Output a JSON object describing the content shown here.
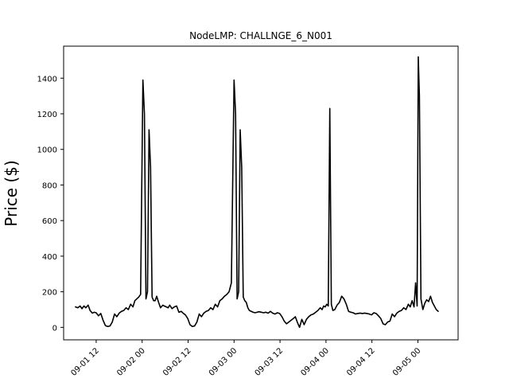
{
  "chart_data": {
    "type": "line",
    "title": "NodeLMP: CHALLNGE_6_N001",
    "xlabel": "",
    "ylabel": "Price ($)",
    "xlim_hours": [
      -20.5,
      82.5
    ],
    "ylim": [
      -70,
      1580
    ],
    "y_ticks": [
      0,
      200,
      400,
      600,
      800,
      1000,
      1200,
      1400
    ],
    "x_ticks": [
      {
        "hour": -12,
        "label": "09-01 12"
      },
      {
        "hour": 0,
        "label": "09-02 00"
      },
      {
        "hour": 12,
        "label": "09-02 12"
      },
      {
        "hour": 24,
        "label": "09-03 00"
      },
      {
        "hour": 36,
        "label": "09-03 12"
      },
      {
        "hour": 48,
        "label": "09-04 00"
      },
      {
        "hour": 60,
        "label": "09-04 12"
      },
      {
        "hour": 72,
        "label": "09-05 00"
      }
    ],
    "grid": false,
    "line_color": "#000000",
    "series": [
      {
        "name": "",
        "x_hours": [
          -17.4,
          -16.8,
          -16.2,
          -15.7,
          -15.2,
          -14.7,
          -14.1,
          -13.6,
          -13.0,
          -12.5,
          -12.0,
          -11.4,
          -10.8,
          -10.2,
          -9.6,
          -9.0,
          -8.4,
          -7.8,
          -7.2,
          -6.6,
          -6.0,
          -5.4,
          -4.8,
          -4.2,
          -3.6,
          -3.0,
          -2.4,
          -1.9,
          -1.4,
          -0.9,
          -0.4,
          0.2,
          0.6,
          1.0,
          1.4,
          1.8,
          2.2,
          2.6,
          3.0,
          3.4,
          3.8,
          4.3,
          4.8,
          5.4,
          5.8,
          6.3,
          6.8,
          7.2,
          7.8,
          8.4,
          9.0,
          9.6,
          10.2,
          10.7,
          11.3,
          11.9,
          12.5,
          13.1,
          13.7,
          14.3,
          14.9,
          15.5,
          16.1,
          16.7,
          17.3,
          17.9,
          18.5,
          19.1,
          19.7,
          20.3,
          20.9,
          21.5,
          22.1,
          22.7,
          23.3,
          24.0,
          24.4,
          24.8,
          25.2,
          25.6,
          26.0,
          26.4,
          26.8,
          27.2,
          27.6,
          28.0,
          28.5,
          29.0,
          29.5,
          30.0,
          30.5,
          31.1,
          31.7,
          32.3,
          32.9,
          33.5,
          34.1,
          34.7,
          35.3,
          35.9,
          36.5,
          37.1,
          37.7,
          38.3,
          38.9,
          39.5,
          40.0,
          40.5,
          41.1,
          41.7,
          42.3,
          42.9,
          43.5,
          44.1,
          44.7,
          45.3,
          45.9,
          46.5,
          47.0,
          47.4,
          47.8,
          48.2,
          48.6,
          49.0,
          49.4,
          49.8,
          50.3,
          50.9,
          51.5,
          52.1,
          52.7,
          53.3,
          53.9,
          54.5,
          55.1,
          55.7,
          56.3,
          56.9,
          57.5,
          58.1,
          58.7,
          59.3,
          59.9,
          60.5,
          61.1,
          61.7,
          62.3,
          62.9,
          63.5,
          64.1,
          64.7,
          65.3,
          65.9,
          66.5,
          67.1,
          67.7,
          68.3,
          68.9,
          69.5,
          70.0,
          70.5,
          71.0,
          71.4,
          71.8,
          72.1,
          72.4,
          72.8,
          73.3,
          73.8,
          74.3,
          74.8,
          75.3,
          75.8,
          76.3,
          76.8,
          77.3
        ],
        "values": [
          115,
          110,
          120,
          105,
          120,
          110,
          125,
          95,
          80,
          85,
          82,
          65,
          78,
          40,
          10,
          5,
          8,
          30,
          75,
          60,
          80,
          90,
          95,
          110,
          100,
          130,
          115,
          150,
          160,
          170,
          185,
          1390,
          1200,
          160,
          200,
          1110,
          900,
          170,
          150,
          150,
          175,
          140,
          110,
          125,
          120,
          115,
          110,
          125,
          105,
          115,
          120,
          85,
          90,
          80,
          70,
          50,
          15,
          5,
          8,
          30,
          75,
          60,
          80,
          90,
          95,
          110,
          100,
          130,
          115,
          150,
          160,
          175,
          185,
          200,
          250,
          1390,
          1200,
          160,
          200,
          1110,
          900,
          170,
          150,
          140,
          110,
          95,
          90,
          85,
          82,
          85,
          88,
          85,
          82,
          85,
          80,
          90,
          80,
          75,
          82,
          78,
          60,
          35,
          20,
          30,
          40,
          50,
          60,
          30,
          0,
          45,
          15,
          45,
          60,
          70,
          75,
          85,
          95,
          110,
          100,
          120,
          115,
          130,
          120,
          1230,
          130,
          95,
          100,
          125,
          140,
          175,
          160,
          130,
          90,
          85,
          82,
          75,
          78,
          80,
          78,
          80,
          78,
          75,
          70,
          82,
          78,
          65,
          50,
          20,
          15,
          30,
          35,
          75,
          60,
          80,
          90,
          95,
          110,
          100,
          130,
          115,
          150,
          115,
          250,
          120,
          1520,
          1300,
          160,
          100,
          135,
          155,
          145,
          175,
          140,
          120,
          100,
          90
        ]
      }
    ]
  }
}
